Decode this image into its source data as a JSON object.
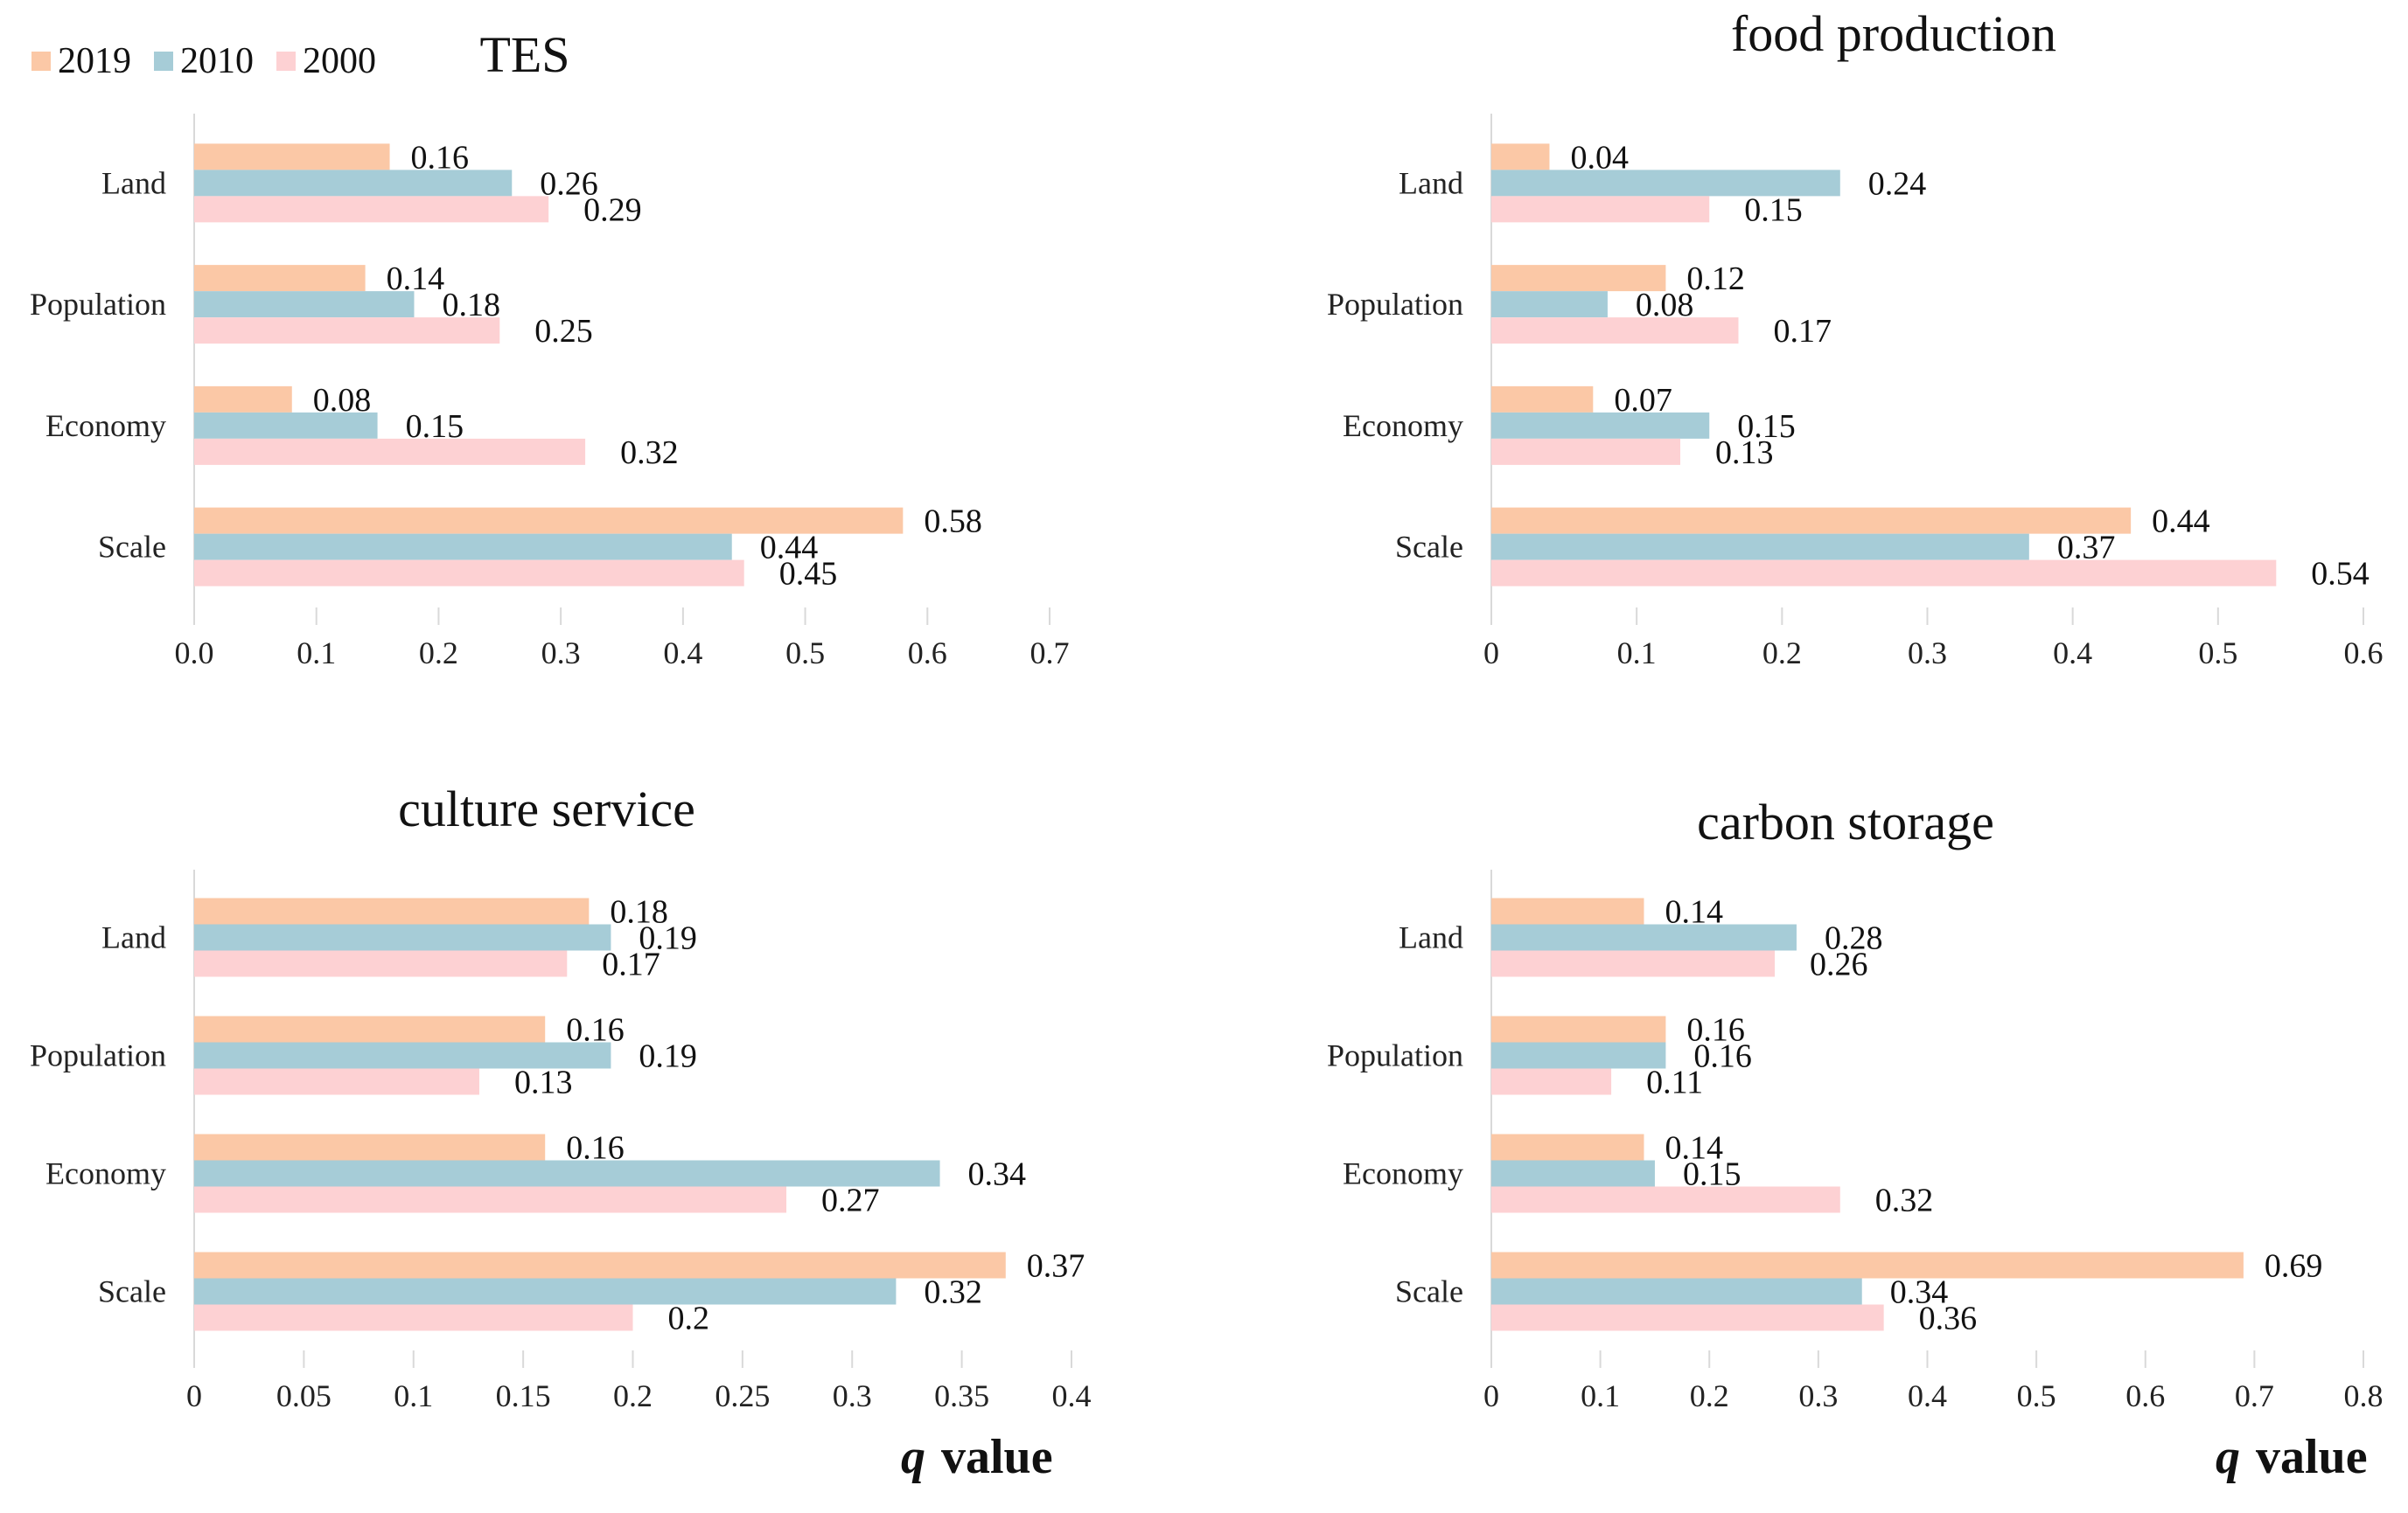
{
  "legend": {
    "items": [
      {
        "label": "2019",
        "color": "#fbc8a6"
      },
      {
        "label": "2010",
        "color": "#a6ccd7"
      },
      {
        "label": "2000",
        "color": "#fdd1d3"
      }
    ]
  },
  "axis_caption": {
    "q": "q",
    "suffix": "value"
  },
  "chart_data": [
    {
      "type": "bar",
      "orientation": "horizontal",
      "title": "TES",
      "categories": [
        "Land",
        "Population",
        "Economy",
        "Scale"
      ],
      "series": [
        {
          "name": "2019",
          "values": [
            0.16,
            0.14,
            0.08,
            0.58
          ]
        },
        {
          "name": "2010",
          "values": [
            0.26,
            0.18,
            0.15,
            0.44
          ]
        },
        {
          "name": "2000",
          "values": [
            0.29,
            0.25,
            0.32,
            0.45
          ]
        }
      ],
      "xlim": [
        0,
        0.7
      ],
      "xticks": [
        "0.0",
        "0.1",
        "0.2",
        "0.3",
        "0.4",
        "0.5",
        "0.6",
        "0.7"
      ],
      "xlabel": ""
    },
    {
      "type": "bar",
      "orientation": "horizontal",
      "title": "food production",
      "categories": [
        "Land",
        "Population",
        "Economy",
        "Scale"
      ],
      "series": [
        {
          "name": "2019",
          "values": [
            0.04,
            0.12,
            0.07,
            0.44
          ]
        },
        {
          "name": "2010",
          "values": [
            0.24,
            0.08,
            0.15,
            0.37
          ]
        },
        {
          "name": "2000",
          "values": [
            0.15,
            0.17,
            0.13,
            0.54
          ]
        }
      ],
      "xlim": [
        0,
        0.6
      ],
      "xticks": [
        "0",
        "0.1",
        "0.2",
        "0.3",
        "0.4",
        "0.5",
        "0.6"
      ],
      "xlabel": ""
    },
    {
      "type": "bar",
      "orientation": "horizontal",
      "title": "culture service",
      "categories": [
        "Land",
        "Population",
        "Economy",
        "Scale"
      ],
      "series": [
        {
          "name": "2019",
          "values": [
            0.18,
            0.16,
            0.16,
            0.37
          ]
        },
        {
          "name": "2010",
          "values": [
            0.19,
            0.19,
            0.34,
            0.32
          ]
        },
        {
          "name": "2000",
          "values": [
            0.17,
            0.13,
            0.27,
            0.2
          ]
        }
      ],
      "xlim": [
        0,
        0.4
      ],
      "xticks": [
        "0",
        "0.05",
        "0.1",
        "0.15",
        "0.2",
        "0.25",
        "0.3",
        "0.35",
        "0.4"
      ],
      "xlabel": "q value"
    },
    {
      "type": "bar",
      "orientation": "horizontal",
      "title": "carbon storage",
      "categories": [
        "Land",
        "Population",
        "Economy",
        "Scale"
      ],
      "series": [
        {
          "name": "2019",
          "values": [
            0.14,
            0.16,
            0.14,
            0.69
          ]
        },
        {
          "name": "2010",
          "values": [
            0.28,
            0.16,
            0.15,
            0.34
          ]
        },
        {
          "name": "2000",
          "values": [
            0.26,
            0.11,
            0.32,
            0.36
          ]
        }
      ],
      "xlim": [
        0,
        0.8
      ],
      "xticks": [
        "0",
        "0.1",
        "0.2",
        "0.3",
        "0.4",
        "0.5",
        "0.6",
        "0.7",
        "0.8"
      ],
      "xlabel": "q value"
    }
  ]
}
